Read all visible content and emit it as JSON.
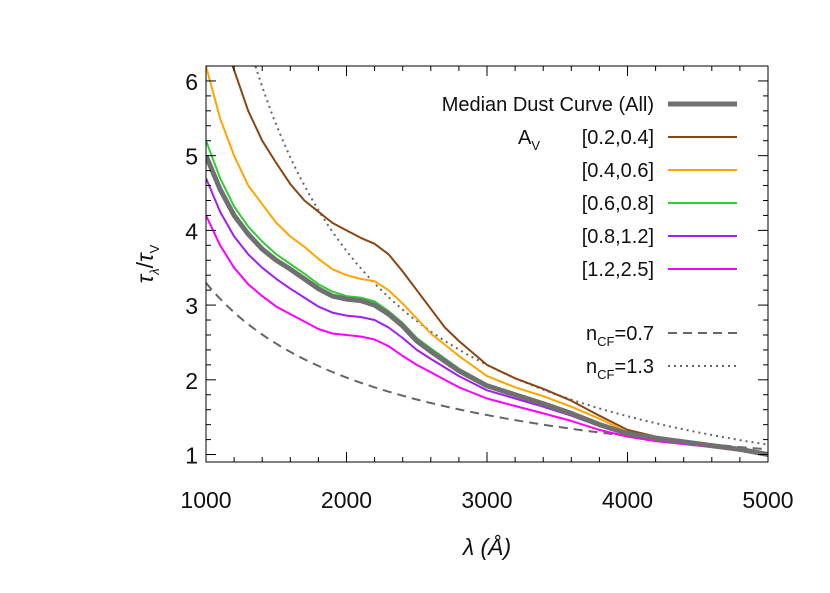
{
  "chart_data": {
    "type": "line",
    "title": "",
    "xlabel": "λ (Å)",
    "ylabel": "τλ/τV",
    "xlim": [
      1000,
      5000
    ],
    "ylim": [
      0.9,
      6.2
    ],
    "xticks": [
      1000,
      2000,
      3000,
      4000,
      5000
    ],
    "yticks": [
      1,
      2,
      3,
      4,
      5,
      6
    ],
    "legend_placement": "top-right",
    "legend_group_label": "A",
    "legend_group_label_sub": "V",
    "series": [
      {
        "name": "Median Dust Curve (All)",
        "color": "#707070",
        "style": "thick",
        "points": [
          [
            1000,
            5.0
          ],
          [
            1100,
            4.55
          ],
          [
            1200,
            4.2
          ],
          [
            1300,
            3.95
          ],
          [
            1400,
            3.75
          ],
          [
            1500,
            3.6
          ],
          [
            1600,
            3.48
          ],
          [
            1700,
            3.35
          ],
          [
            1800,
            3.22
          ],
          [
            1900,
            3.12
          ],
          [
            2000,
            3.08
          ],
          [
            2100,
            3.06
          ],
          [
            2200,
            3.0
          ],
          [
            2300,
            2.88
          ],
          [
            2400,
            2.72
          ],
          [
            2500,
            2.52
          ],
          [
            2600,
            2.38
          ],
          [
            2800,
            2.12
          ],
          [
            3000,
            1.92
          ],
          [
            3200,
            1.8
          ],
          [
            3400,
            1.68
          ],
          [
            3600,
            1.55
          ],
          [
            3800,
            1.4
          ],
          [
            4000,
            1.28
          ],
          [
            4200,
            1.22
          ],
          [
            4400,
            1.17
          ],
          [
            4600,
            1.12
          ],
          [
            4800,
            1.07
          ],
          [
            5000,
            1.0
          ]
        ]
      },
      {
        "name": "[0.2,0.4]",
        "color": "#8b4513",
        "style": "solid",
        "points": [
          [
            1190,
            6.2
          ],
          [
            1300,
            5.6
          ],
          [
            1400,
            5.2
          ],
          [
            1500,
            4.9
          ],
          [
            1600,
            4.62
          ],
          [
            1700,
            4.4
          ],
          [
            1800,
            4.25
          ],
          [
            1900,
            4.1
          ],
          [
            2000,
            4.0
          ],
          [
            2100,
            3.9
          ],
          [
            2200,
            3.82
          ],
          [
            2300,
            3.68
          ],
          [
            2400,
            3.45
          ],
          [
            2500,
            3.2
          ],
          [
            2600,
            2.95
          ],
          [
            2700,
            2.7
          ],
          [
            2800,
            2.52
          ],
          [
            3000,
            2.2
          ],
          [
            3200,
            2.02
          ],
          [
            3400,
            1.88
          ],
          [
            3600,
            1.72
          ],
          [
            3800,
            1.52
          ],
          [
            4000,
            1.33
          ],
          [
            4200,
            1.24
          ],
          [
            4400,
            1.18
          ],
          [
            4600,
            1.13
          ],
          [
            4800,
            1.07
          ],
          [
            5000,
            1.0
          ]
        ]
      },
      {
        "name": "[0.4,0.6]",
        "color": "#ffa500",
        "style": "solid",
        "points": [
          [
            1000,
            6.2
          ],
          [
            1100,
            5.5
          ],
          [
            1200,
            5.0
          ],
          [
            1300,
            4.6
          ],
          [
            1400,
            4.35
          ],
          [
            1500,
            4.1
          ],
          [
            1600,
            3.92
          ],
          [
            1700,
            3.78
          ],
          [
            1800,
            3.62
          ],
          [
            1900,
            3.48
          ],
          [
            2000,
            3.4
          ],
          [
            2100,
            3.35
          ],
          [
            2200,
            3.32
          ],
          [
            2300,
            3.2
          ],
          [
            2400,
            3.02
          ],
          [
            2500,
            2.82
          ],
          [
            2600,
            2.62
          ],
          [
            2800,
            2.32
          ],
          [
            3000,
            2.05
          ],
          [
            3200,
            1.9
          ],
          [
            3400,
            1.78
          ],
          [
            3600,
            1.64
          ],
          [
            3800,
            1.48
          ],
          [
            4000,
            1.3
          ],
          [
            4200,
            1.23
          ],
          [
            4400,
            1.17
          ],
          [
            4600,
            1.12
          ],
          [
            4800,
            1.07
          ],
          [
            5000,
            1.0
          ]
        ]
      },
      {
        "name": "[0.6,0.8]",
        "color": "#32cd32",
        "style": "solid",
        "points": [
          [
            1000,
            5.2
          ],
          [
            1100,
            4.7
          ],
          [
            1200,
            4.32
          ],
          [
            1300,
            4.05
          ],
          [
            1400,
            3.85
          ],
          [
            1500,
            3.68
          ],
          [
            1600,
            3.55
          ],
          [
            1700,
            3.42
          ],
          [
            1800,
            3.28
          ],
          [
            1900,
            3.18
          ],
          [
            2000,
            3.12
          ],
          [
            2100,
            3.1
          ],
          [
            2200,
            3.05
          ],
          [
            2300,
            2.92
          ],
          [
            2400,
            2.76
          ],
          [
            2500,
            2.56
          ],
          [
            2600,
            2.42
          ],
          [
            2800,
            2.15
          ],
          [
            3000,
            1.94
          ],
          [
            3200,
            1.82
          ],
          [
            3400,
            1.7
          ],
          [
            3600,
            1.57
          ],
          [
            3800,
            1.42
          ],
          [
            4000,
            1.29
          ],
          [
            4200,
            1.22
          ],
          [
            4400,
            1.17
          ],
          [
            4600,
            1.12
          ],
          [
            4800,
            1.07
          ],
          [
            5000,
            1.0
          ]
        ]
      },
      {
        "name": "[0.8,1.2]",
        "color": "#a020f0",
        "style": "solid",
        "points": [
          [
            1000,
            4.7
          ],
          [
            1100,
            4.25
          ],
          [
            1200,
            3.92
          ],
          [
            1300,
            3.68
          ],
          [
            1400,
            3.5
          ],
          [
            1500,
            3.35
          ],
          [
            1600,
            3.22
          ],
          [
            1700,
            3.1
          ],
          [
            1800,
            2.98
          ],
          [
            1900,
            2.9
          ],
          [
            2000,
            2.86
          ],
          [
            2100,
            2.84
          ],
          [
            2200,
            2.8
          ],
          [
            2300,
            2.7
          ],
          [
            2400,
            2.56
          ],
          [
            2500,
            2.4
          ],
          [
            2600,
            2.28
          ],
          [
            2800,
            2.05
          ],
          [
            3000,
            1.86
          ],
          [
            3200,
            1.75
          ],
          [
            3400,
            1.64
          ],
          [
            3600,
            1.52
          ],
          [
            3800,
            1.38
          ],
          [
            4000,
            1.27
          ],
          [
            4200,
            1.21
          ],
          [
            4400,
            1.16
          ],
          [
            4600,
            1.11
          ],
          [
            4800,
            1.06
          ],
          [
            5000,
            1.0
          ]
        ]
      },
      {
        "name": "[1.2,2.5]",
        "color": "#ff00ff",
        "style": "solid",
        "points": [
          [
            1000,
            4.2
          ],
          [
            1100,
            3.8
          ],
          [
            1200,
            3.5
          ],
          [
            1300,
            3.28
          ],
          [
            1400,
            3.12
          ],
          [
            1500,
            2.98
          ],
          [
            1600,
            2.88
          ],
          [
            1700,
            2.78
          ],
          [
            1800,
            2.68
          ],
          [
            1900,
            2.62
          ],
          [
            2000,
            2.6
          ],
          [
            2100,
            2.58
          ],
          [
            2200,
            2.54
          ],
          [
            2300,
            2.45
          ],
          [
            2400,
            2.32
          ],
          [
            2500,
            2.2
          ],
          [
            2600,
            2.1
          ],
          [
            2800,
            1.9
          ],
          [
            3000,
            1.75
          ],
          [
            3200,
            1.65
          ],
          [
            3400,
            1.55
          ],
          [
            3600,
            1.45
          ],
          [
            3800,
            1.33
          ],
          [
            4000,
            1.24
          ],
          [
            4200,
            1.18
          ],
          [
            4400,
            1.14
          ],
          [
            4600,
            1.1
          ],
          [
            4800,
            1.05
          ],
          [
            5000,
            1.0
          ]
        ]
      },
      {
        "name": "nCF=0.7",
        "label_main": "n",
        "label_sub": "CF",
        "label_rest": "=0.7",
        "color": "#666666",
        "style": "dashed",
        "func": "powerlaw",
        "n": 0.7
      },
      {
        "name": "nCF=1.3",
        "label_main": "n",
        "label_sub": "CF",
        "label_rest": "=1.3",
        "color": "#666666",
        "style": "dotted",
        "func": "powerlaw",
        "n": 1.3
      }
    ]
  }
}
